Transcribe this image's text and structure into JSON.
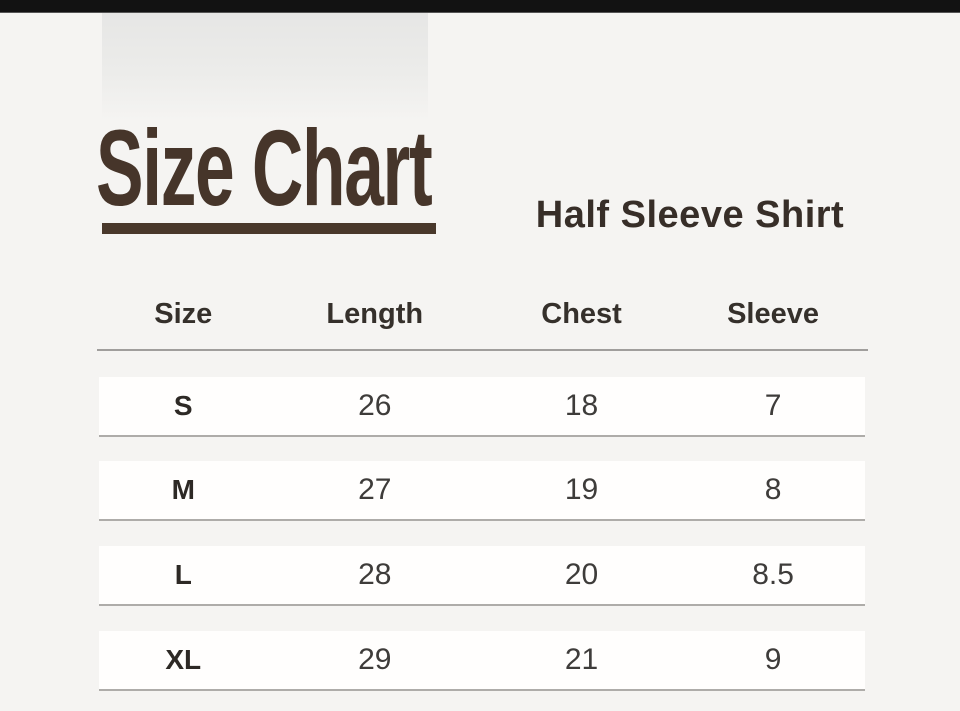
{
  "window": {
    "top_bar_color": "#121212",
    "background_color": "#f5f4f2"
  },
  "header": {
    "title": "Size Chart",
    "title_color": "#46352a",
    "subtitle": "Half Sleeve Shirt"
  },
  "table": {
    "columns": [
      "Size",
      "Length",
      "Chest",
      "Sleeve"
    ],
    "rows": [
      [
        "S",
        "26",
        "18",
        "7"
      ],
      [
        "M",
        "27",
        "19",
        "8"
      ],
      [
        "L",
        "28",
        "20",
        "8.5"
      ],
      [
        "XL",
        "29",
        "21",
        "9"
      ]
    ]
  }
}
